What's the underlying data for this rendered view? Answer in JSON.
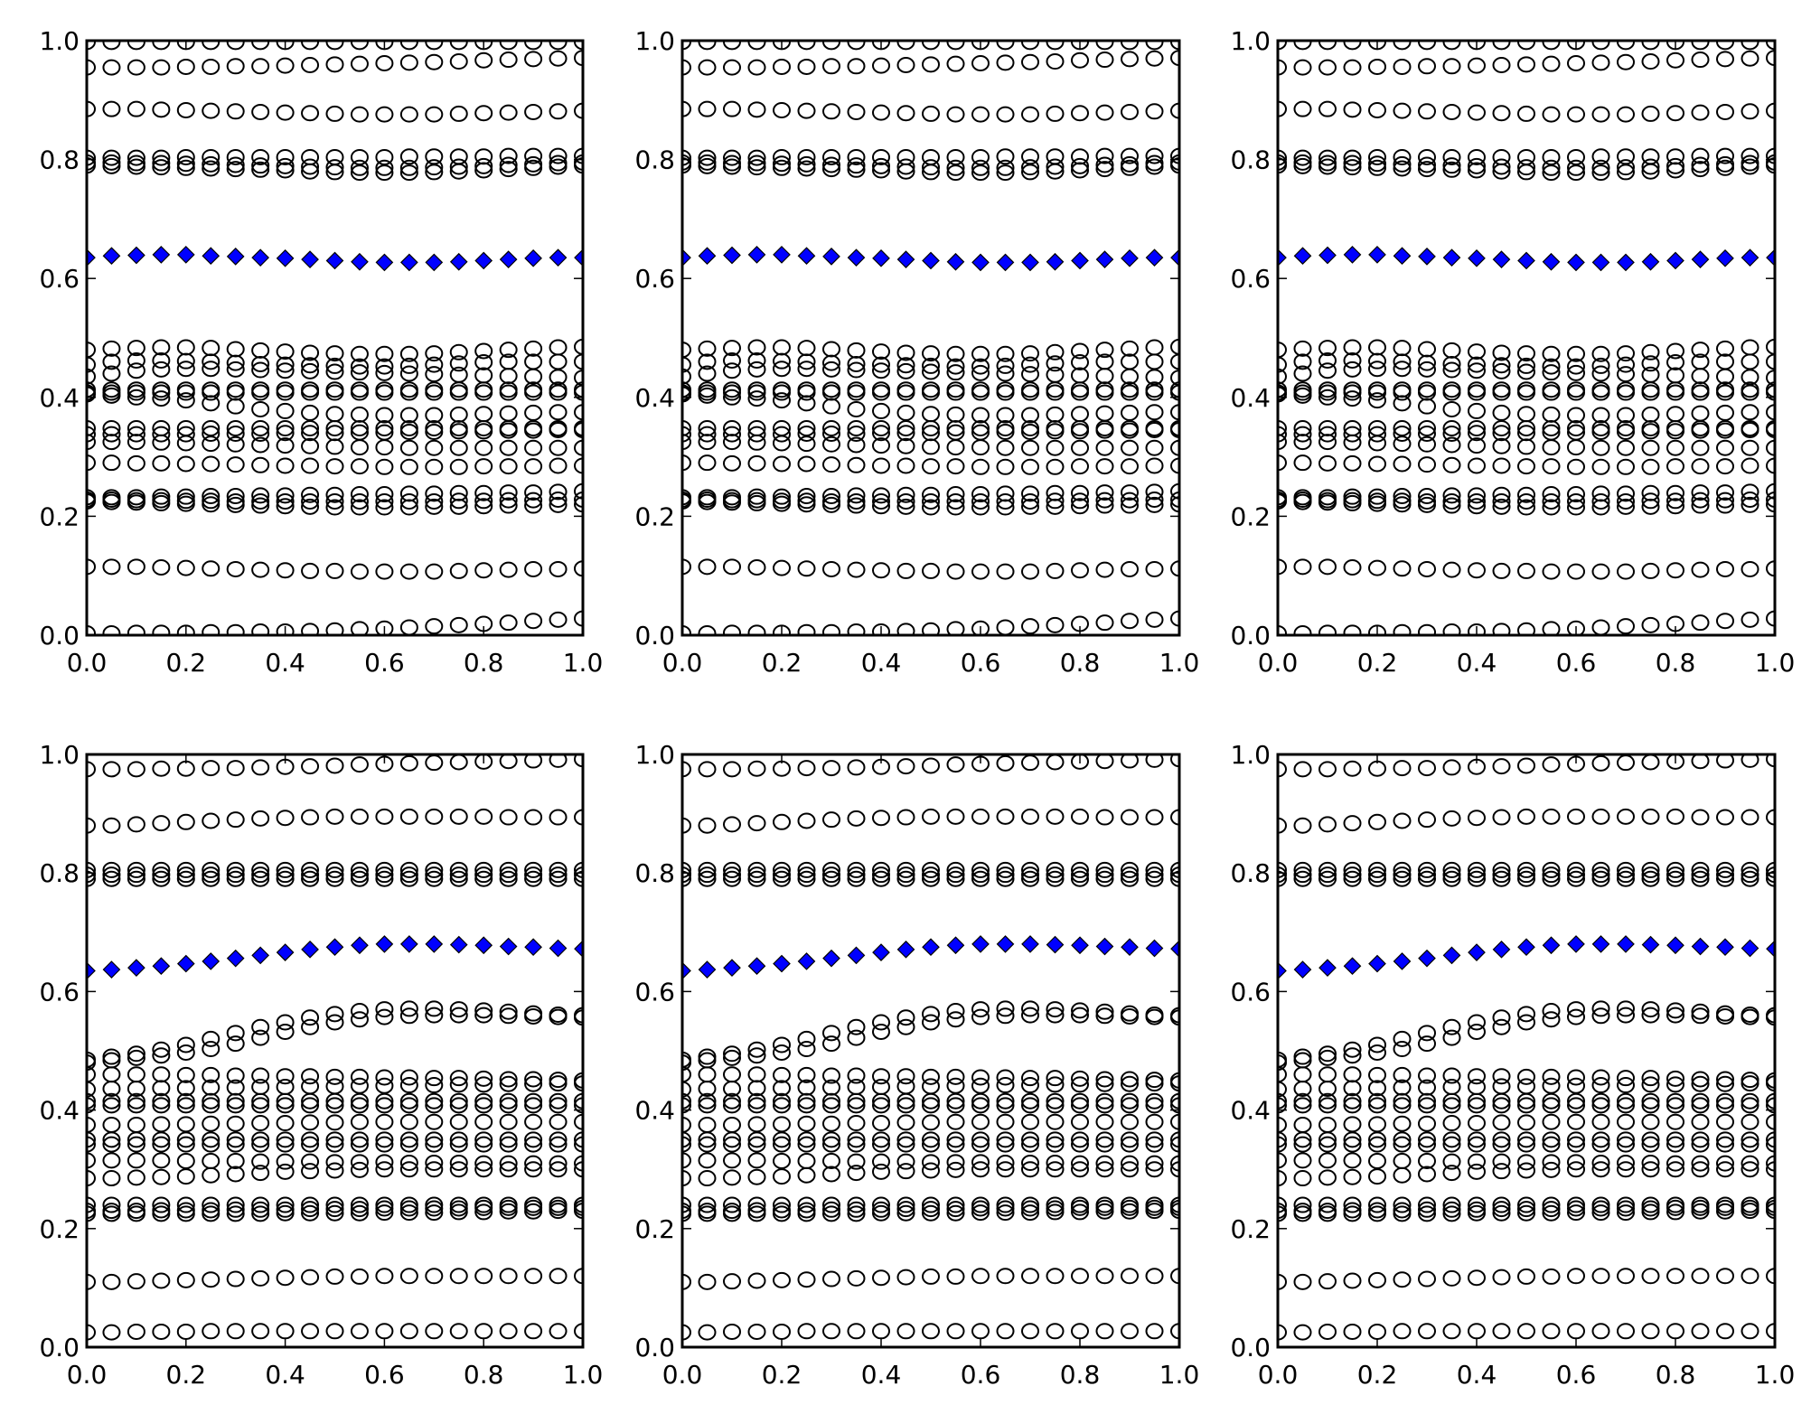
{
  "chart_data": {
    "type": "scatter",
    "title": "",
    "xlabel": "",
    "ylabel": "",
    "xlim": [
      0,
      1
    ],
    "ylim": [
      0,
      1
    ],
    "grid": false,
    "legend": "none",
    "xticks": [
      "0.0",
      "0.2",
      "0.4",
      "0.6",
      "0.8",
      "1.0"
    ],
    "yticks": [
      "0.0",
      "0.2",
      "0.4",
      "0.6",
      "0.8",
      "1.0"
    ],
    "x": [
      0,
      0.05,
      0.1,
      0.15,
      0.2,
      0.25,
      0.3,
      0.35,
      0.4,
      0.45,
      0.5,
      0.55,
      0.6,
      0.65,
      0.7,
      0.75,
      0.8,
      0.85,
      0.9,
      0.95,
      1.0
    ],
    "circle_color": "#000000",
    "diamond_color": "#0000ff",
    "panels": [
      {
        "row": 1,
        "col": 1,
        "dataset": "top"
      },
      {
        "row": 1,
        "col": 2,
        "dataset": "top"
      },
      {
        "row": 1,
        "col": 3,
        "dataset": "top"
      },
      {
        "row": 2,
        "col": 1,
        "dataset": "bottom"
      },
      {
        "row": 2,
        "col": 2,
        "dataset": "bottom"
      },
      {
        "row": 2,
        "col": 3,
        "dataset": "bottom"
      }
    ],
    "datasets": {
      "top": {
        "diamonds": [
          0.635,
          0.638,
          0.639,
          0.64,
          0.64,
          0.638,
          0.637,
          0.635,
          0.634,
          0.632,
          0.63,
          0.628,
          0.627,
          0.627,
          0.627,
          0.628,
          0.63,
          0.632,
          0.634,
          0.635,
          0.635
        ],
        "circles": [
          [
            0.998,
            0.998,
            0.998,
            0.998,
            0.998,
            0.998,
            0.998,
            0.998,
            0.998,
            0.998,
            0.998,
            0.998,
            0.998,
            0.998,
            0.998,
            0.998,
            0.998,
            0.998,
            0.998,
            0.998,
            0.998
          ],
          [
            0.955,
            0.955,
            0.955,
            0.955,
            0.956,
            0.956,
            0.957,
            0.957,
            0.958,
            0.959,
            0.96,
            0.961,
            0.962,
            0.963,
            0.964,
            0.965,
            0.967,
            0.968,
            0.969,
            0.97,
            0.971
          ],
          [
            0.885,
            0.885,
            0.885,
            0.884,
            0.883,
            0.882,
            0.881,
            0.88,
            0.879,
            0.878,
            0.877,
            0.876,
            0.876,
            0.876,
            0.876,
            0.877,
            0.878,
            0.879,
            0.88,
            0.881,
            0.882
          ],
          [
            0.803,
            0.803,
            0.803,
            0.803,
            0.804,
            0.804,
            0.804,
            0.804,
            0.804,
            0.804,
            0.804,
            0.804,
            0.804,
            0.805,
            0.805,
            0.805,
            0.805,
            0.806,
            0.806,
            0.806,
            0.806
          ],
          [
            0.795,
            0.795,
            0.794,
            0.794,
            0.793,
            0.792,
            0.791,
            0.79,
            0.789,
            0.788,
            0.787,
            0.786,
            0.786,
            0.786,
            0.787,
            0.788,
            0.789,
            0.791,
            0.792,
            0.794,
            0.795
          ],
          [
            0.79,
            0.789,
            0.788,
            0.787,
            0.786,
            0.785,
            0.784,
            0.783,
            0.782,
            0.78,
            0.779,
            0.778,
            0.778,
            0.778,
            0.779,
            0.78,
            0.782,
            0.784,
            0.786,
            0.788,
            0.79
          ],
          [
            0.48,
            0.482,
            0.483,
            0.484,
            0.484,
            0.483,
            0.481,
            0.479,
            0.477,
            0.475,
            0.474,
            0.473,
            0.473,
            0.473,
            0.474,
            0.476,
            0.478,
            0.48,
            0.482,
            0.484,
            0.485
          ],
          [
            0.455,
            0.46,
            0.462,
            0.462,
            0.461,
            0.46,
            0.458,
            0.456,
            0.455,
            0.454,
            0.453,
            0.452,
            0.452,
            0.453,
            0.455,
            0.457,
            0.459,
            0.46,
            0.46,
            0.46,
            0.46
          ],
          [
            0.435,
            0.44,
            0.445,
            0.447,
            0.448,
            0.448,
            0.447,
            0.446,
            0.445,
            0.444,
            0.443,
            0.442,
            0.441,
            0.44,
            0.439,
            0.438,
            0.437,
            0.436,
            0.435,
            0.434,
            0.433
          ],
          [
            0.413,
            0.413,
            0.413,
            0.413,
            0.413,
            0.413,
            0.413,
            0.413,
            0.413,
            0.413,
            0.413,
            0.413,
            0.413,
            0.413,
            0.413,
            0.413,
            0.413,
            0.413,
            0.413,
            0.413,
            0.413
          ],
          [
            0.408,
            0.408,
            0.408,
            0.408,
            0.408,
            0.408,
            0.408,
            0.408,
            0.408,
            0.408,
            0.408,
            0.408,
            0.408,
            0.408,
            0.408,
            0.408,
            0.408,
            0.408,
            0.408,
            0.408,
            0.408
          ],
          [
            0.405,
            0.403,
            0.4,
            0.398,
            0.395,
            0.39,
            0.385,
            0.38,
            0.377,
            0.374,
            0.372,
            0.371,
            0.37,
            0.37,
            0.37,
            0.371,
            0.372,
            0.373,
            0.374,
            0.375,
            0.375
          ],
          [
            0.348,
            0.348,
            0.348,
            0.348,
            0.348,
            0.348,
            0.348,
            0.348,
            0.348,
            0.348,
            0.348,
            0.348,
            0.348,
            0.348,
            0.348,
            0.348,
            0.348,
            0.348,
            0.348,
            0.348,
            0.348
          ],
          [
            0.338,
            0.338,
            0.338,
            0.338,
            0.338,
            0.339,
            0.339,
            0.339,
            0.34,
            0.34,
            0.34,
            0.341,
            0.341,
            0.342,
            0.342,
            0.343,
            0.343,
            0.344,
            0.344,
            0.345,
            0.345
          ],
          [
            0.325,
            0.325,
            0.325,
            0.324,
            0.323,
            0.322,
            0.321,
            0.32,
            0.319,
            0.318,
            0.317,
            0.316,
            0.316,
            0.315,
            0.315,
            0.315,
            0.315,
            0.315,
            0.315,
            0.315,
            0.315
          ],
          [
            0.29,
            0.29,
            0.289,
            0.289,
            0.288,
            0.288,
            0.287,
            0.286,
            0.285,
            0.285,
            0.284,
            0.284,
            0.283,
            0.283,
            0.283,
            0.283,
            0.284,
            0.284,
            0.284,
            0.285,
            0.285
          ],
          [
            0.232,
            0.232,
            0.232,
            0.233,
            0.233,
            0.234,
            0.234,
            0.235,
            0.235,
            0.236,
            0.236,
            0.237,
            0.237,
            0.238,
            0.238,
            0.239,
            0.239,
            0.24,
            0.24,
            0.241,
            0.242
          ],
          [
            0.228,
            0.228,
            0.227,
            0.227,
            0.226,
            0.226,
            0.225,
            0.225,
            0.225,
            0.225,
            0.225,
            0.225,
            0.225,
            0.225,
            0.225,
            0.226,
            0.226,
            0.227,
            0.227,
            0.228,
            0.228
          ],
          [
            0.225,
            0.224,
            0.223,
            0.222,
            0.221,
            0.22,
            0.219,
            0.218,
            0.217,
            0.216,
            0.215,
            0.215,
            0.215,
            0.215,
            0.216,
            0.216,
            0.217,
            0.218,
            0.218,
            0.219,
            0.22
          ],
          [
            0.115,
            0.115,
            0.115,
            0.114,
            0.113,
            0.112,
            0.111,
            0.11,
            0.109,
            0.108,
            0.108,
            0.107,
            0.107,
            0.107,
            0.107,
            0.108,
            0.109,
            0.11,
            0.111,
            0.111,
            0.112
          ],
          [
            0.003,
            0.003,
            0.004,
            0.004,
            0.004,
            0.005,
            0.005,
            0.006,
            0.006,
            0.007,
            0.008,
            0.01,
            0.011,
            0.013,
            0.015,
            0.017,
            0.019,
            0.021,
            0.024,
            0.026,
            0.028
          ]
        ]
      },
      "bottom": {
        "diamonds": [
          0.635,
          0.637,
          0.64,
          0.643,
          0.647,
          0.651,
          0.656,
          0.661,
          0.666,
          0.671,
          0.675,
          0.678,
          0.68,
          0.68,
          0.68,
          0.679,
          0.678,
          0.676,
          0.675,
          0.673,
          0.672
        ],
        "circles": [
          [
            0.975,
            0.975,
            0.975,
            0.976,
            0.976,
            0.977,
            0.977,
            0.978,
            0.979,
            0.98,
            0.981,
            0.983,
            0.984,
            0.985,
            0.986,
            0.987,
            0.988,
            0.989,
            0.99,
            0.991,
            0.992
          ],
          [
            0.88,
            0.88,
            0.882,
            0.884,
            0.886,
            0.888,
            0.89,
            0.892,
            0.893,
            0.894,
            0.895,
            0.895,
            0.895,
            0.895,
            0.895,
            0.895,
            0.895,
            0.894,
            0.894,
            0.894,
            0.894
          ],
          [
            0.805,
            0.805,
            0.805,
            0.805,
            0.805,
            0.805,
            0.805,
            0.805,
            0.805,
            0.805,
            0.805,
            0.805,
            0.805,
            0.805,
            0.805,
            0.805,
            0.805,
            0.805,
            0.805,
            0.805,
            0.805
          ],
          [
            0.797,
            0.797,
            0.797,
            0.797,
            0.797,
            0.797,
            0.797,
            0.797,
            0.797,
            0.797,
            0.797,
            0.797,
            0.797,
            0.797,
            0.797,
            0.797,
            0.797,
            0.797,
            0.797,
            0.797,
            0.797
          ],
          [
            0.79,
            0.79,
            0.79,
            0.79,
            0.79,
            0.79,
            0.79,
            0.79,
            0.79,
            0.79,
            0.79,
            0.79,
            0.79,
            0.79,
            0.79,
            0.79,
            0.79,
            0.79,
            0.79,
            0.79,
            0.79
          ],
          [
            0.485,
            0.49,
            0.495,
            0.502,
            0.51,
            0.52,
            0.53,
            0.54,
            0.548,
            0.556,
            0.562,
            0.567,
            0.57,
            0.571,
            0.571,
            0.57,
            0.568,
            0.566,
            0.563,
            0.561,
            0.56
          ],
          [
            0.48,
            0.484,
            0.488,
            0.492,
            0.497,
            0.503,
            0.512,
            0.522,
            0.532,
            0.54,
            0.548,
            0.553,
            0.557,
            0.559,
            0.56,
            0.56,
            0.56,
            0.559,
            0.558,
            0.557,
            0.556
          ],
          [
            0.46,
            0.46,
            0.46,
            0.46,
            0.459,
            0.459,
            0.458,
            0.458,
            0.457,
            0.457,
            0.456,
            0.456,
            0.455,
            0.455,
            0.454,
            0.454,
            0.453,
            0.452,
            0.452,
            0.451,
            0.45
          ],
          [
            0.435,
            0.436,
            0.436,
            0.437,
            0.437,
            0.438,
            0.438,
            0.439,
            0.439,
            0.44,
            0.44,
            0.441,
            0.441,
            0.442,
            0.442,
            0.443,
            0.443,
            0.444,
            0.444,
            0.445,
            0.445
          ],
          [
            0.415,
            0.415,
            0.415,
            0.415,
            0.415,
            0.415,
            0.415,
            0.415,
            0.415,
            0.415,
            0.415,
            0.415,
            0.415,
            0.415,
            0.415,
            0.415,
            0.415,
            0.415,
            0.415,
            0.415,
            0.415
          ],
          [
            0.408,
            0.408,
            0.408,
            0.408,
            0.408,
            0.408,
            0.408,
            0.408,
            0.408,
            0.408,
            0.408,
            0.408,
            0.408,
            0.408,
            0.408,
            0.408,
            0.408,
            0.408,
            0.408,
            0.408,
            0.408
          ],
          [
            0.375,
            0.375,
            0.375,
            0.376,
            0.376,
            0.377,
            0.377,
            0.378,
            0.378,
            0.379,
            0.379,
            0.38,
            0.38,
            0.38,
            0.38,
            0.38,
            0.38,
            0.38,
            0.38,
            0.38,
            0.38
          ],
          [
            0.35,
            0.35,
            0.35,
            0.35,
            0.35,
            0.35,
            0.35,
            0.35,
            0.35,
            0.35,
            0.35,
            0.35,
            0.35,
            0.35,
            0.35,
            0.35,
            0.35,
            0.35,
            0.35,
            0.35,
            0.35
          ],
          [
            0.342,
            0.342,
            0.342,
            0.342,
            0.342,
            0.342,
            0.342,
            0.342,
            0.342,
            0.342,
            0.342,
            0.342,
            0.342,
            0.342,
            0.342,
            0.342,
            0.342,
            0.342,
            0.342,
            0.342,
            0.342
          ],
          [
            0.315,
            0.315,
            0.315,
            0.315,
            0.314,
            0.314,
            0.314,
            0.313,
            0.313,
            0.313,
            0.312,
            0.312,
            0.312,
            0.311,
            0.311,
            0.311,
            0.31,
            0.31,
            0.31,
            0.31,
            0.31
          ],
          [
            0.285,
            0.285,
            0.286,
            0.287,
            0.288,
            0.29,
            0.292,
            0.294,
            0.296,
            0.297,
            0.298,
            0.299,
            0.3,
            0.3,
            0.3,
            0.3,
            0.3,
            0.3,
            0.3,
            0.3,
            0.3
          ],
          [
            0.24,
            0.24,
            0.24,
            0.24,
            0.24,
            0.24,
            0.24,
            0.24,
            0.24,
            0.24,
            0.24,
            0.24,
            0.24,
            0.24,
            0.24,
            0.24,
            0.24,
            0.24,
            0.24,
            0.24,
            0.24
          ],
          [
            0.23,
            0.23,
            0.23,
            0.231,
            0.231,
            0.231,
            0.232,
            0.232,
            0.232,
            0.233,
            0.233,
            0.233,
            0.234,
            0.234,
            0.234,
            0.234,
            0.235,
            0.235,
            0.235,
            0.235,
            0.235
          ],
          [
            0.225,
            0.225,
            0.225,
            0.225,
            0.225,
            0.225,
            0.225,
            0.225,
            0.226,
            0.226,
            0.226,
            0.226,
            0.227,
            0.227,
            0.227,
            0.228,
            0.228,
            0.229,
            0.229,
            0.23,
            0.23
          ],
          [
            0.11,
            0.11,
            0.111,
            0.112,
            0.113,
            0.114,
            0.115,
            0.116,
            0.117,
            0.118,
            0.119,
            0.119,
            0.12,
            0.12,
            0.12,
            0.12,
            0.12,
            0.12,
            0.12,
            0.12,
            0.12
          ],
          [
            0.025,
            0.025,
            0.026,
            0.026,
            0.026,
            0.027,
            0.027,
            0.027,
            0.027,
            0.027,
            0.027,
            0.027,
            0.027,
            0.027,
            0.027,
            0.027,
            0.027,
            0.027,
            0.027,
            0.027,
            0.027
          ]
        ]
      }
    }
  }
}
